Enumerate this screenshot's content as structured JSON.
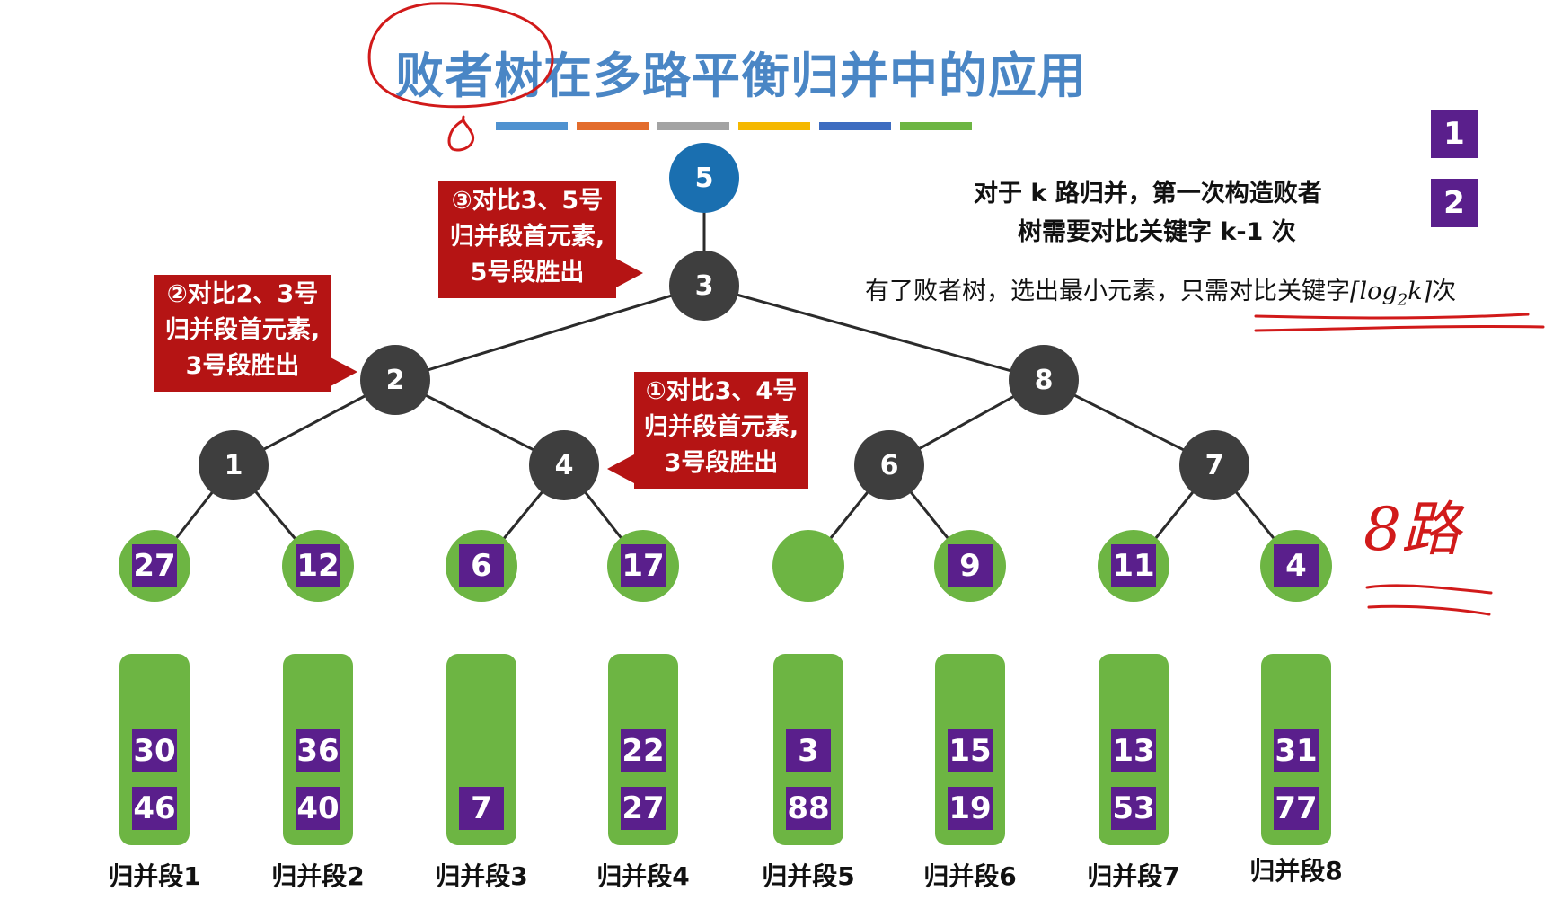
{
  "title": "败者树在多路平衡归并中的应用",
  "color_strip": [
    "#4f92d0",
    "#e36c2c",
    "#a3a3a3",
    "#f5b800",
    "#3d6cc0",
    "#6db543"
  ],
  "tree": {
    "winner": "5",
    "root": "3",
    "level2": [
      "2",
      "8"
    ],
    "level3": [
      "1",
      "4",
      "6",
      "7"
    ]
  },
  "leaves": [
    "27",
    "12",
    "6",
    "17",
    "",
    "9",
    "11",
    "4"
  ],
  "callouts": {
    "c1": [
      "①对比3、4号",
      "归并段首元素,",
      "3号段胜出"
    ],
    "c2": [
      "②对比2、3号",
      "归并段首元素,",
      "3号段胜出"
    ],
    "c3": [
      "③对比3、5号",
      "归并段首元素,",
      "5号段胜出"
    ]
  },
  "segments": [
    {
      "label": "归并段1",
      "values": [
        "30",
        "46"
      ]
    },
    {
      "label": "归并段2",
      "values": [
        "36",
        "40"
      ]
    },
    {
      "label": "归并段3",
      "values": [
        "",
        "7"
      ]
    },
    {
      "label": "归并段4",
      "values": [
        "22",
        "27"
      ]
    },
    {
      "label": "归并段5",
      "values": [
        "3",
        "88"
      ]
    },
    {
      "label": "归并段6",
      "values": [
        "15",
        "19"
      ]
    },
    {
      "label": "归并段7",
      "values": [
        "13",
        "53"
      ]
    },
    {
      "label": "归并段8",
      "values": [
        "31",
        "77"
      ]
    }
  ],
  "notes": {
    "line1": "对于 k 路归并，第一次构造败者",
    "line2": "树需要对比关键字 k-1 次",
    "line3_prefix": "有了败者树，选出最小元素，只需对比关键字",
    "line3_math_open": "⌈",
    "line3_math_log": "log",
    "line3_math_sub": "2",
    "line3_math_k": "k",
    "line3_math_close": "⌉",
    "line3_suffix": "次"
  },
  "badges": [
    "1",
    "2"
  ],
  "handwritten": "8路",
  "colors": {
    "title": "#4a86c5",
    "callout": "#b51414",
    "node": "#3e3e3e",
    "winner": "#1a6fb0",
    "leaf": "#6db543",
    "key_square": "#5a1f8c",
    "annotation_ink": "#d11a1a"
  }
}
